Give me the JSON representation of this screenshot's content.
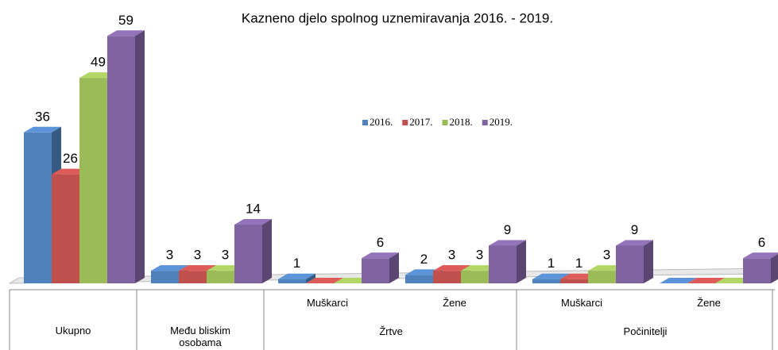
{
  "chart_data": {
    "type": "bar3d",
    "title": "Kazneno djelo spolnog uznemiravanja 2016. - 2019.",
    "categories": [
      "Ukupno",
      "Među bliskim osobama",
      "Muškarci",
      "Žene",
      "Muškarci",
      "Žene"
    ],
    "category_groups": [
      {
        "label": "Žrtve",
        "categories": [
          2,
          3
        ]
      },
      {
        "label": "Počinitelji",
        "categories": [
          4,
          5
        ]
      }
    ],
    "series": [
      {
        "name": "2016.",
        "color": "#4f81bd",
        "values": [
          36,
          3,
          1,
          2,
          1,
          0
        ],
        "value_labels": [
          "36",
          "3",
          "1",
          "2",
          "1",
          null
        ]
      },
      {
        "name": "2017.",
        "color": "#c0504d",
        "values": [
          26,
          3,
          0,
          3,
          1,
          0
        ],
        "value_labels": [
          "26",
          "3",
          null,
          "3",
          "1",
          null
        ]
      },
      {
        "name": "2018.",
        "color": "#9bbb59",
        "values": [
          49,
          3,
          0,
          3,
          3,
          0
        ],
        "value_labels": [
          "49",
          "3",
          null,
          "3",
          "3",
          null
        ]
      },
      {
        "name": "2019.",
        "color": "#8064a2",
        "values": [
          59,
          14,
          6,
          9,
          9,
          6
        ],
        "value_labels": [
          "59",
          "14",
          "6",
          "9",
          "9",
          "6"
        ]
      }
    ],
    "ylim": [
      0,
      60
    ]
  }
}
